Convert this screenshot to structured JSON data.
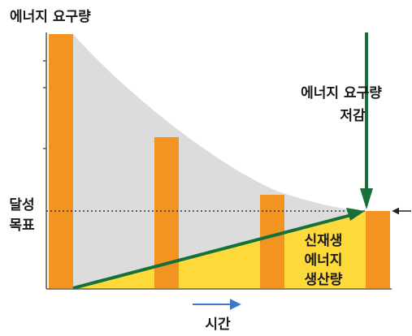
{
  "texts": {
    "y_axis_title": "에너지 요구량",
    "reduction_line1": "에너지 요구량",
    "reduction_line2": "저감",
    "target_line1": "달성",
    "target_line2": "목표",
    "renewable_line1": "신재생",
    "renewable_line2": "에너지",
    "renewable_line3": "생산량",
    "x_axis_title": "시간"
  },
  "colors": {
    "bar": "#F39420",
    "demand_area": "#DCDCDC",
    "renewable_area": "#FDDA3A",
    "arrow": "#16703A",
    "time_arrow": "#3A78C9",
    "axis": "#555555"
  }
}
